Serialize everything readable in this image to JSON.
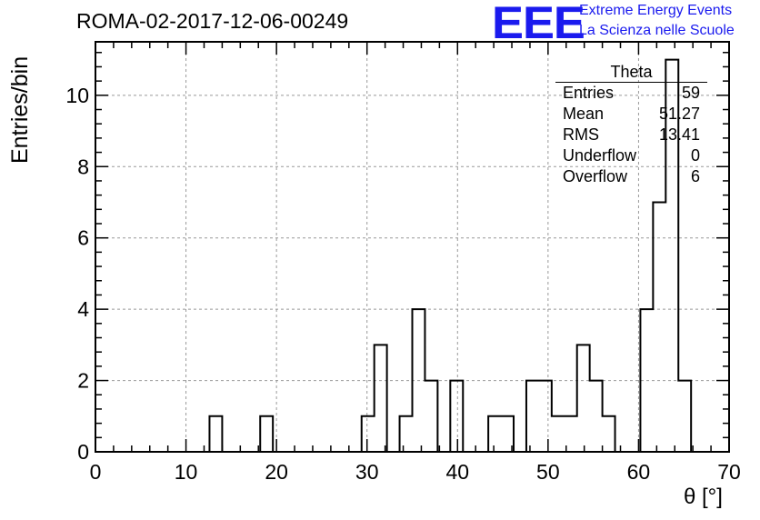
{
  "title": "ROMA-02-2017-12-06-00249",
  "logo": {
    "mark": "EEE",
    "line1": "Extreme Energy Events",
    "line2": "La Scienza nelle Scuole",
    "color": "#1a1aee"
  },
  "stats": {
    "title": "Theta",
    "rows": [
      {
        "label": "Entries",
        "value": "59"
      },
      {
        "label": "Mean",
        "value": "51.27"
      },
      {
        "label": "RMS",
        "value": "13.41"
      },
      {
        "label": "Underflow",
        "value": "0"
      },
      {
        "label": "Overflow",
        "value": "6"
      }
    ]
  },
  "chart_data": {
    "type": "bar",
    "histogram": true,
    "title": "ROMA-02-2017-12-06-00249",
    "xlabel": "θ [°]",
    "ylabel": "Entries/bin",
    "xlim": [
      0,
      70
    ],
    "ylim": [
      0,
      11.5
    ],
    "grid": true,
    "bin_width": 1.4,
    "x_ticks": [
      "0",
      "10",
      "20",
      "30",
      "40",
      "50",
      "60",
      "70"
    ],
    "y_ticks": [
      "0",
      "2",
      "4",
      "6",
      "8",
      "10"
    ],
    "bin_edges": [
      0,
      1.4,
      2.8,
      4.2,
      5.6,
      7.0,
      8.4,
      9.8,
      11.2,
      12.6,
      14.0,
      15.4,
      16.8,
      18.2,
      19.6,
      21.0,
      22.4,
      23.8,
      25.2,
      26.6,
      28.0,
      29.4,
      30.8,
      32.2,
      33.6,
      35.0,
      36.4,
      37.8,
      39.2,
      40.6,
      42.0,
      43.4,
      44.8,
      46.2,
      47.6,
      49.0,
      50.4,
      51.8,
      53.2,
      54.6,
      56.0,
      57.4,
      58.8,
      60.2,
      61.6,
      63.0,
      64.4,
      65.8,
      67.2,
      68.6,
      70.0
    ],
    "values": [
      0,
      0,
      0,
      0,
      0,
      0,
      0,
      0,
      0,
      1,
      0,
      0,
      0,
      1,
      0,
      0,
      0,
      0,
      0,
      0,
      0,
      1,
      3,
      0,
      1,
      4,
      2,
      0,
      2,
      0,
      0,
      1,
      1,
      0,
      2,
      2,
      1,
      1,
      3,
      2,
      1,
      0,
      0,
      4,
      7,
      11,
      2,
      0,
      0,
      0
    ]
  }
}
